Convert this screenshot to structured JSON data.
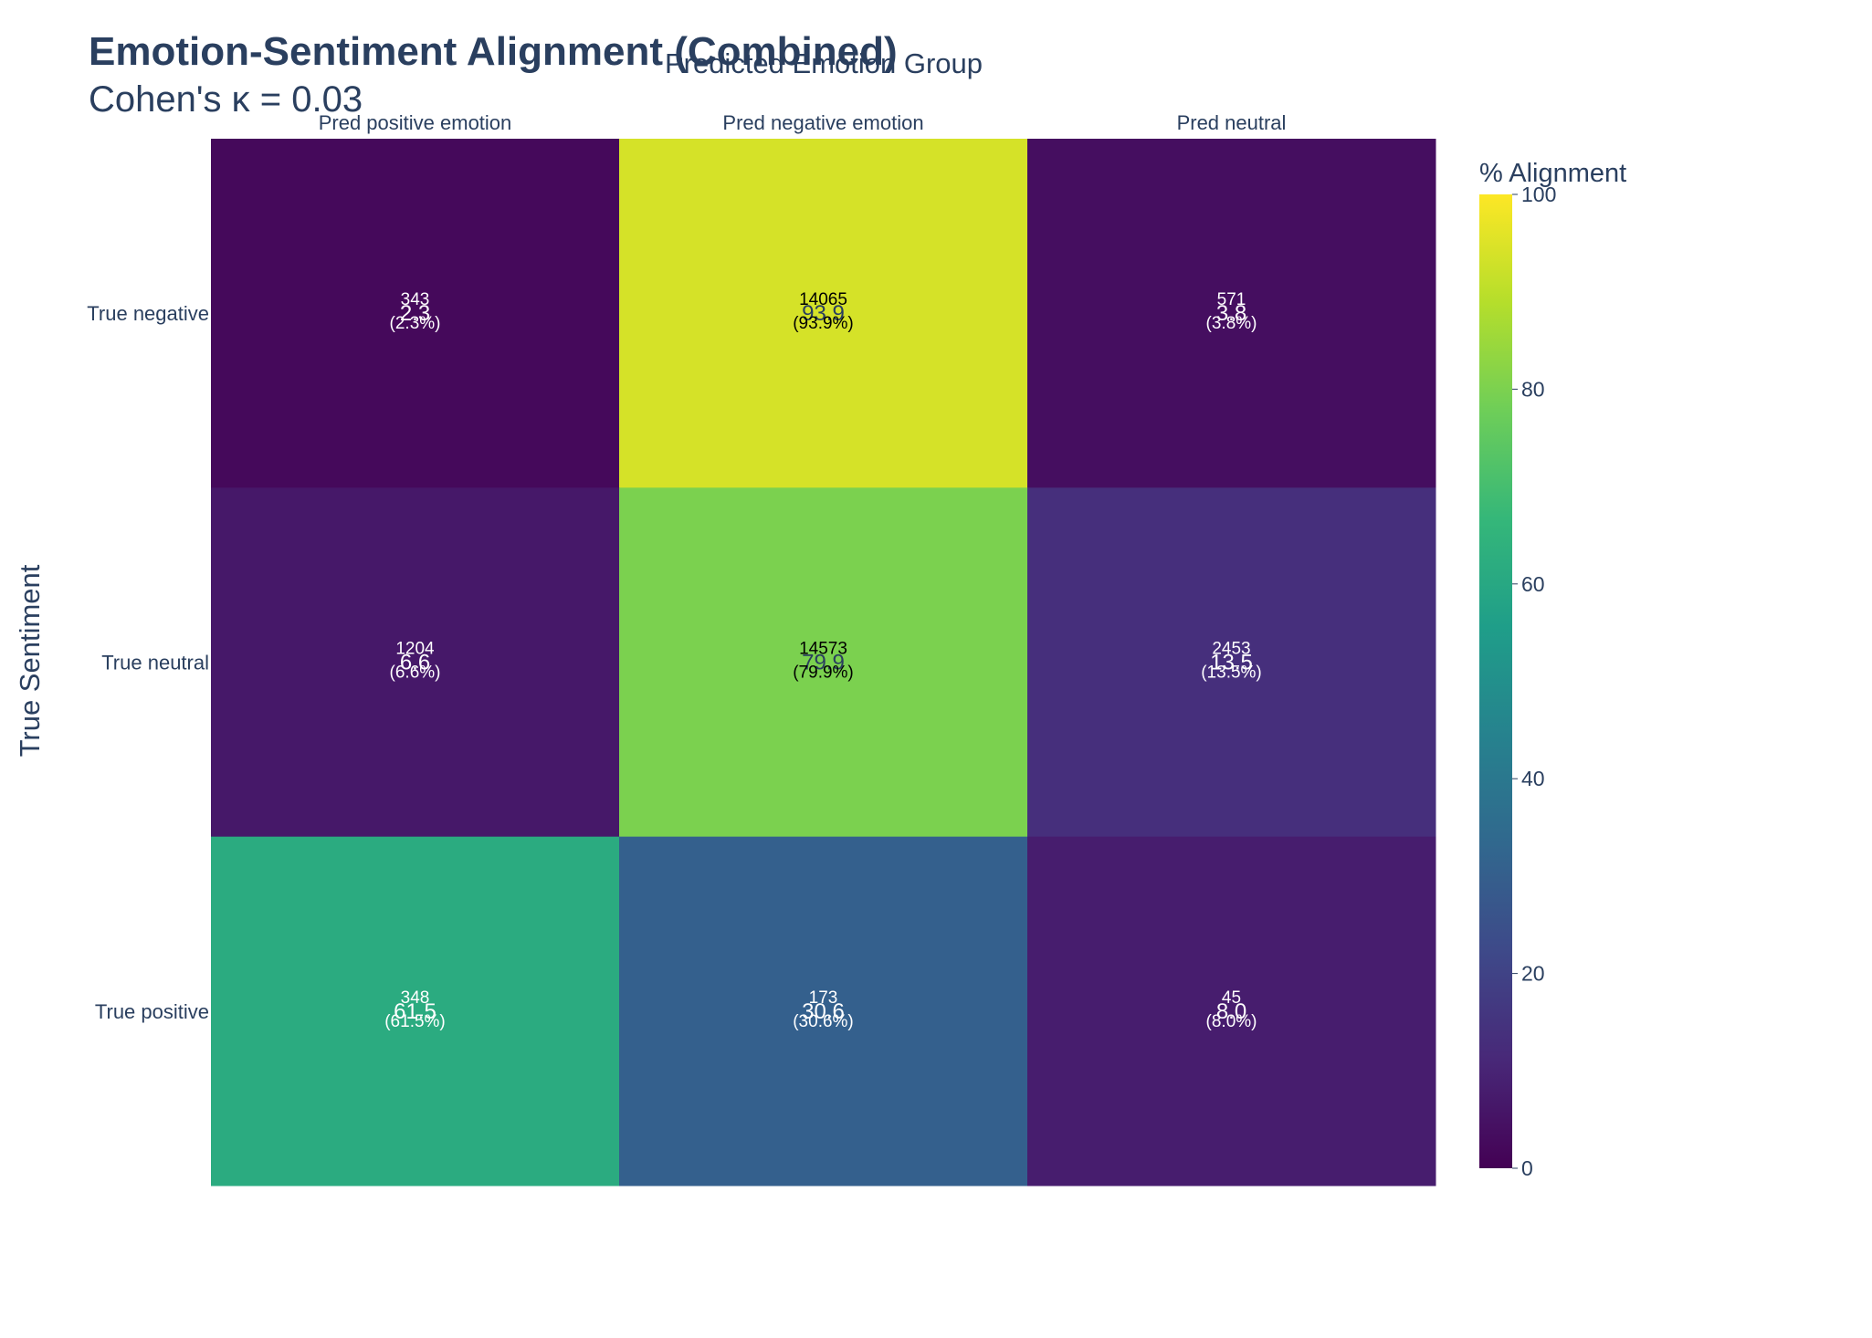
{
  "chart_data": {
    "type": "heatmap",
    "title": "Emotion-Sentiment Alignment (Combined)",
    "subtitle": "Cohen's κ = 0.03",
    "xlabel": "Predicted Emotion Group",
    "ylabel": "True Sentiment",
    "x_categories": [
      "Pred positive emotion",
      "Pred negative emotion",
      "Pred neutral"
    ],
    "y_categories": [
      "True negative",
      "True neutral",
      "True positive"
    ],
    "z_percent": [
      [
        2.3,
        93.9,
        3.8
      ],
      [
        6.6,
        79.9,
        13.5
      ],
      [
        61.5,
        30.6,
        8.0
      ]
    ],
    "z_text": [
      [
        "2.3",
        "93.9",
        "3.8"
      ],
      [
        "6.6",
        "79.9",
        "13.5"
      ],
      [
        "61.5",
        "30.6",
        "8.0"
      ]
    ],
    "counts": [
      [
        "343",
        "14065",
        "571"
      ],
      [
        "1204",
        "14573",
        "2453"
      ],
      [
        "348",
        "173",
        "45"
      ]
    ],
    "pct_labels": [
      [
        "(2.3%)",
        "(93.9%)",
        "(3.8%)"
      ],
      [
        "(6.6%)",
        "(79.9%)",
        "(13.5%)"
      ],
      [
        "(61.5%)",
        "(30.6%)",
        "(8.0%)"
      ]
    ],
    "colorscale": "Viridis",
    "zlim": [
      0,
      100
    ],
    "colorbar": {
      "title": "% Alignment",
      "tickvals": [
        0,
        20,
        40,
        60,
        80,
        100
      ],
      "ticktext": [
        "0",
        "20",
        "40",
        "60",
        "80",
        "100"
      ]
    },
    "x_axis_side": "top",
    "legend": "colorbar-right"
  }
}
